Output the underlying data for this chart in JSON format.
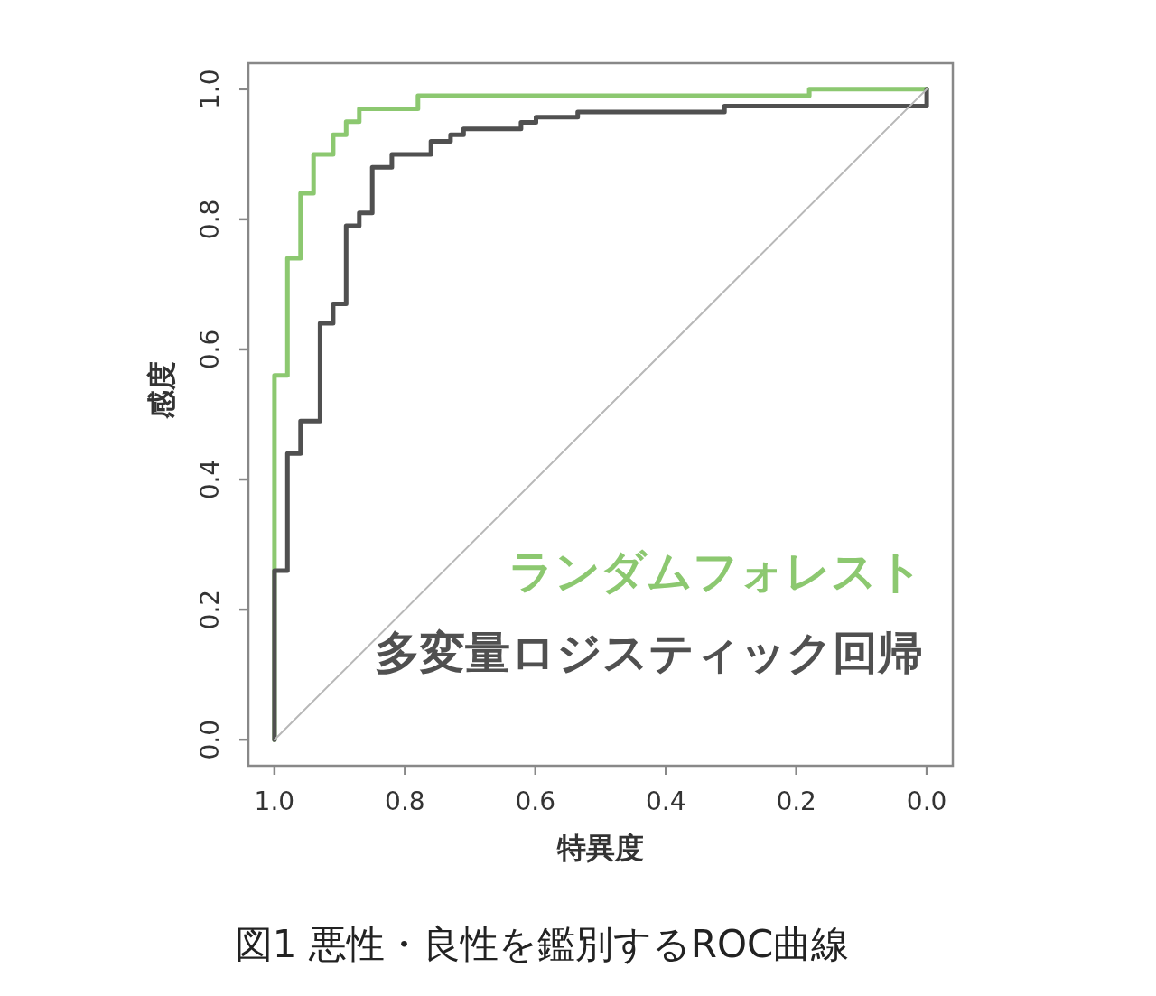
{
  "chart_data": {
    "type": "line",
    "xlabel": "特異度",
    "ylabel": "感度",
    "annotations": [
      "図1 悪性・良性を鑑別するROC曲線"
    ],
    "xlim": [
      1.04,
      -0.04
    ],
    "ylim": [
      -0.04,
      1.04
    ],
    "xticks": [
      {
        "value": 1,
        "label": "1.0"
      },
      0.8,
      0.6,
      0.4,
      0.2,
      {
        "value": 0,
        "label": "0.0"
      }
    ],
    "yticks": [
      {
        "value": 0,
        "label": "0.0"
      },
      0.2,
      0.4,
      0.6,
      0.8,
      {
        "value": 1,
        "label": "1.0"
      }
    ],
    "grid": false,
    "legend": "bottom right",
    "marker": "none",
    "line_style": "solid",
    "series": [
      {
        "name": "ランダムフォレスト",
        "color": "#8cc870",
        "x": [
          1,
          1,
          0.98,
          0.98,
          0.96,
          0.96,
          0.94,
          0.94,
          0.91,
          0.91,
          0.89,
          0.89,
          0.87,
          0.87,
          0.78,
          0.78,
          0.18,
          0.18,
          0
        ],
        "values": [
          0,
          0.56,
          0.56,
          0.74,
          0.74,
          0.84,
          0.84,
          0.9,
          0.9,
          0.93,
          0.93,
          0.95,
          0.95,
          0.97,
          0.97,
          0.99,
          0.99,
          1,
          1
        ]
      },
      {
        "name": "多変量ロジスティック回帰",
        "color": "#505050",
        "x": [
          1,
          1,
          0.98,
          0.98,
          0.96,
          0.96,
          0.93,
          0.93,
          0.91,
          0.91,
          0.89,
          0.89,
          0.87,
          0.87,
          0.85,
          0.85,
          0.82,
          0.82,
          0.76,
          0.76,
          0.73,
          0.73,
          0.71,
          0.71,
          0.622,
          0.622,
          0.599,
          0.599,
          0.535,
          0.535,
          0.31,
          0.31,
          0,
          0
        ],
        "values": [
          0,
          0.26,
          0.26,
          0.44,
          0.44,
          0.49,
          0.49,
          0.64,
          0.64,
          0.67,
          0.67,
          0.79,
          0.79,
          0.81,
          0.81,
          0.88,
          0.88,
          0.9,
          0.9,
          0.92,
          0.92,
          0.93,
          0.93,
          0.939,
          0.939,
          0.949,
          0.949,
          0.957,
          0.957,
          0.965,
          0.965,
          0.974,
          0.974,
          1
        ]
      },
      {
        "color": "#b8b8b8",
        "x": [
          1,
          0
        ],
        "values": [
          0,
          1
        ]
      }
    ]
  }
}
